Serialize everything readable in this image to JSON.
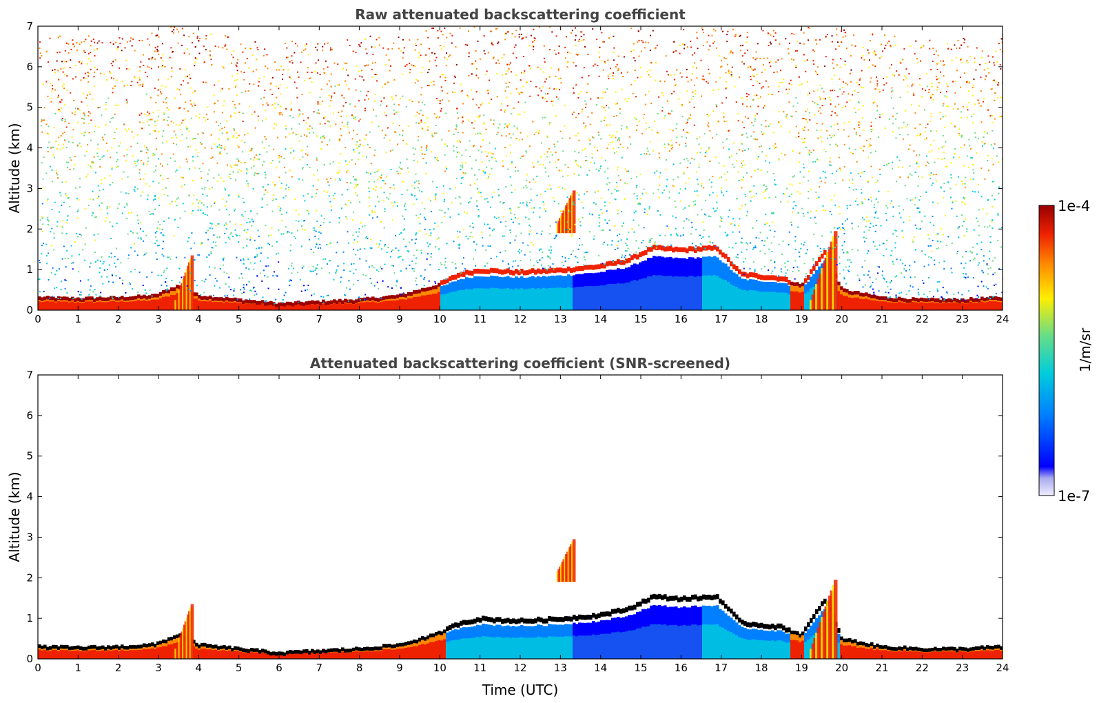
{
  "chart_data": [
    {
      "type": "heatmap",
      "title": "Raw attenuated backscattering coefficient",
      "xlabel": "",
      "ylabel": "Altitude (km)",
      "xlim": [
        0,
        24
      ],
      "ylim": [
        0,
        7
      ],
      "x_ticks": [
        "0",
        "1",
        "2",
        "3",
        "4",
        "5",
        "6",
        "7",
        "8",
        "9",
        "10",
        "11",
        "12",
        "13",
        "14",
        "15",
        "16",
        "17",
        "18",
        "19",
        "20",
        "21",
        "22",
        "23",
        "24"
      ],
      "y_ticks": [
        "0",
        "1",
        "2",
        "3",
        "4",
        "5",
        "6",
        "7"
      ],
      "boundary_layer_top_km": {
        "time_utc": [
          0,
          1,
          2,
          2.9,
          3.5,
          4,
          5,
          6,
          7,
          8,
          9,
          9.9,
          10.5,
          11,
          12,
          13,
          14,
          14.7,
          15.3,
          16,
          16.9,
          17.5,
          18,
          18.5,
          19,
          19.6,
          20,
          21,
          22,
          23,
          23.9
        ],
        "altitude_km": [
          0.3,
          0.28,
          0.3,
          0.35,
          0.6,
          0.35,
          0.25,
          0.15,
          0.2,
          0.25,
          0.35,
          0.6,
          0.9,
          1.0,
          0.95,
          1.0,
          1.1,
          1.25,
          1.55,
          1.5,
          1.55,
          0.9,
          0.85,
          0.8,
          0.6,
          1.5,
          0.5,
          0.3,
          0.25,
          0.25,
          0.3
        ]
      },
      "elevated_layers": [
        {
          "time_utc": [
            12.9,
            13.3
          ],
          "altitude_km": [
            1.9,
            2.7
          ]
        },
        {
          "time_utc": [
            3.4,
            3.8
          ],
          "altitude_km": [
            0,
            1.1
          ]
        },
        {
          "time_utc": [
            19.2,
            19.8
          ],
          "altitude_km": [
            0,
            1.7
          ]
        }
      ],
      "noise_level_aloft": "high above ~1 km (sparse pixels up to 7 km)"
    },
    {
      "type": "heatmap",
      "title": "Attenuated backscattering coefficient (SNR-screened)",
      "xlabel": "Time (UTC)",
      "ylabel": "Altitude (km)",
      "xlim": [
        0,
        24
      ],
      "ylim": [
        0,
        7
      ],
      "x_ticks": [
        "0",
        "1",
        "2",
        "3",
        "4",
        "5",
        "6",
        "7",
        "8",
        "9",
        "10",
        "11",
        "12",
        "13",
        "14",
        "15",
        "16",
        "17",
        "18",
        "19",
        "20",
        "21",
        "22",
        "23",
        "24"
      ],
      "y_ticks": [
        "0",
        "1",
        "2",
        "3",
        "4",
        "5",
        "6",
        "7"
      ],
      "boundary_layer_top_km": {
        "time_utc": [
          0,
          1,
          2,
          2.9,
          3.5,
          4,
          5,
          6,
          7,
          8,
          9,
          9.9,
          10.5,
          11,
          12,
          13,
          14,
          14.7,
          15.3,
          16,
          16.9,
          17.5,
          18,
          18.5,
          19,
          19.6,
          20,
          21,
          22,
          23,
          23.9
        ],
        "altitude_km": [
          0.3,
          0.28,
          0.3,
          0.35,
          0.6,
          0.35,
          0.25,
          0.15,
          0.2,
          0.25,
          0.35,
          0.6,
          0.9,
          1.0,
          0.95,
          1.0,
          1.1,
          1.25,
          1.55,
          1.5,
          1.55,
          0.9,
          0.85,
          0.8,
          0.6,
          1.5,
          0.5,
          0.3,
          0.25,
          0.25,
          0.3
        ]
      },
      "elevated_layers": [
        {
          "time_utc": [
            12.9,
            13.3
          ],
          "altitude_km": [
            1.9,
            2.7
          ]
        },
        {
          "time_utc": [
            3.4,
            3.8
          ],
          "altitude_km": [
            0,
            1.1
          ]
        },
        {
          "time_utc": [
            19.2,
            19.8
          ],
          "altitude_km": [
            0,
            1.7
          ]
        }
      ],
      "noise_level_aloft": "screened (white above boundary layer)"
    }
  ],
  "colorbar": {
    "label": "1/m/sr",
    "max_label": "1e-4",
    "min_label": "1e-7",
    "colormap": [
      "#eeeeff",
      "#aaaaee",
      "#0000ff",
      "#0080ff",
      "#00ccdd",
      "#66dd88",
      "#ffee00",
      "#ff8800",
      "#ee2200",
      "#990000"
    ]
  }
}
